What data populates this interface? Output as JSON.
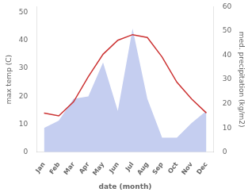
{
  "chart_data": {
    "type": "line",
    "categories": [
      "Jan",
      "Feb",
      "Mar",
      "Apr",
      "May",
      "Jun",
      "Jul",
      "Aug",
      "Sep",
      "Oct",
      "Nov",
      "Dec"
    ],
    "series": [
      {
        "type": "area",
        "color": "#c5cef0",
        "axis": "y2",
        "values": [
          10,
          13,
          22,
          23,
          37,
          17,
          51,
          22,
          6,
          6,
          12,
          17
        ]
      },
      {
        "type": "line",
        "color": "#cc3333",
        "values": [
          14,
          13,
          18,
          27,
          35,
          40,
          42,
          41,
          34,
          25,
          19,
          14
        ]
      }
    ],
    "xlabel": "date (month)",
    "ylabel": "max temp (C)",
    "y2label": "med. precipitation (kg/m2)",
    "ylim": [
      0,
      52
    ],
    "yticks": [
      0,
      10,
      20,
      30,
      40,
      50
    ],
    "y2lim": [
      0,
      60
    ],
    "y2ticks": [
      0,
      10,
      20,
      30,
      40,
      50,
      60
    ],
    "grid": false
  }
}
